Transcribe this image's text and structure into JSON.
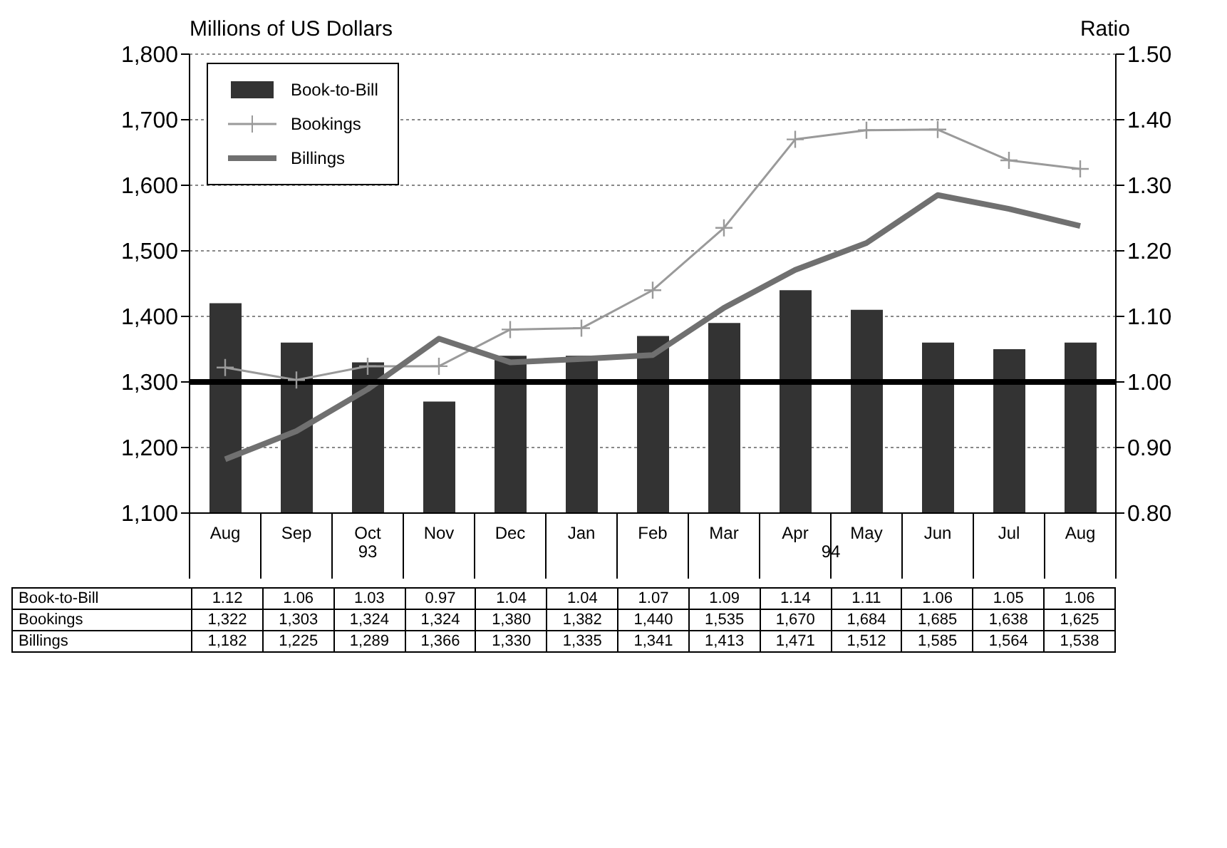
{
  "chart_data": {
    "type": "line",
    "ylabel": "Millions of US Dollars",
    "y2label": "Ratio",
    "categories": [
      "Aug",
      "Sep",
      "Oct",
      "Nov",
      "Dec",
      "Jan",
      "Feb",
      "Mar",
      "Apr",
      "May",
      "Jun",
      "Jul",
      "Aug"
    ],
    "series": [
      {
        "name": "Book-to-Bill",
        "type": "bar",
        "axis": "y2",
        "color": "#333333",
        "values": [
          1.12,
          1.06,
          1.03,
          0.97,
          1.04,
          1.04,
          1.07,
          1.09,
          1.14,
          1.11,
          1.06,
          1.05,
          1.06
        ],
        "value_labels": [
          "1.12",
          "1.06",
          "1.03",
          "0.97",
          "1.04",
          "1.04",
          "1.07",
          "1.09",
          "1.14",
          "1.11",
          "1.06",
          "1.05",
          "1.06"
        ]
      },
      {
        "name": "Bookings",
        "color": "#9a9a9a",
        "marker": "cross",
        "values": [
          1322,
          1303,
          1324,
          1324,
          1380,
          1382,
          1440,
          1535,
          1670,
          1684,
          1685,
          1638,
          1625
        ],
        "value_labels": [
          "1,322",
          "1,303",
          "1,324",
          "1,324",
          "1,380",
          "1,382",
          "1,440",
          "1,535",
          "1,670",
          "1,684",
          "1,685",
          "1,638",
          "1,625"
        ]
      },
      {
        "name": "Billings",
        "color": "#707070",
        "marker": "none",
        "values": [
          1182,
          1225,
          1289,
          1366,
          1330,
          1335,
          1341,
          1413,
          1471,
          1512,
          1585,
          1564,
          1538
        ],
        "value_labels": [
          "1,182",
          "1,225",
          "1,289",
          "1,366",
          "1,330",
          "1,335",
          "1,341",
          "1,413",
          "1,471",
          "1,512",
          "1,585",
          "1,564",
          "1,538"
        ]
      }
    ],
    "ylim": [
      1100,
      1800
    ],
    "yticks": [
      {
        "value": 1100,
        "label": "1,100"
      },
      {
        "value": 1200,
        "label": "1,200"
      },
      {
        "value": 1300,
        "label": "1,300"
      },
      {
        "value": 1400,
        "label": "1,400"
      },
      {
        "value": 1500,
        "label": "1,500"
      },
      {
        "value": 1600,
        "label": "1,600"
      },
      {
        "value": 1700,
        "label": "1,700"
      },
      {
        "value": 1800,
        "label": "1,800"
      }
    ],
    "y2lim": [
      0.8,
      1.5
    ],
    "y2ticks": [
      {
        "value": 0.8,
        "label": "0.80"
      },
      {
        "value": 0.9,
        "label": "0.90"
      },
      {
        "value": 1.0,
        "label": "1.00"
      },
      {
        "value": 1.1,
        "label": "1.10"
      },
      {
        "value": 1.2,
        "label": "1.20"
      },
      {
        "value": 1.3,
        "label": "1.30"
      },
      {
        "value": 1.4,
        "label": "1.40"
      },
      {
        "value": 1.5,
        "label": "1.50"
      }
    ],
    "ref_lines": [
      {
        "axis": "y2",
        "value": 1.0,
        "color": "#000000",
        "line_style": "solid"
      }
    ],
    "annotations": [
      "93",
      "94"
    ],
    "grid": "y",
    "legend": "top left",
    "line_style": "solid"
  }
}
